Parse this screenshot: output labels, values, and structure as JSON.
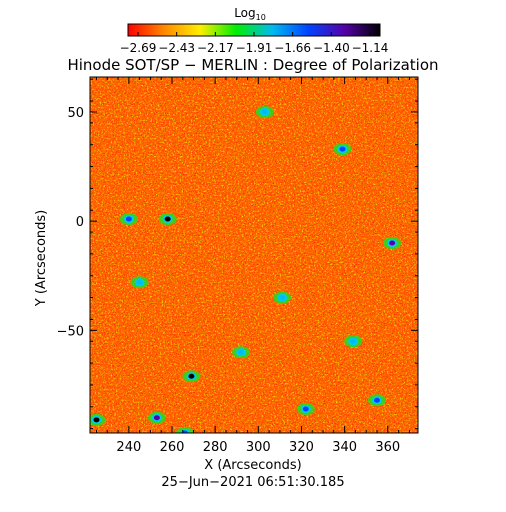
{
  "chart_data": {
    "type": "heatmap",
    "title": "Hinode SOT/SP − MERLIN : Degree of Polarization",
    "colorbar": {
      "label": "Log",
      "label_sub": "10",
      "min": -2.69,
      "max": -1.14,
      "tick_labels": [
        "−2.69",
        "−2.43",
        "−2.17",
        "−1.91",
        "−1.66",
        "−1.40",
        "−1.14"
      ],
      "colors": [
        "#ff0000",
        "#ff8800",
        "#ffee00",
        "#00ee00",
        "#00bbee",
        "#0044ff",
        "#5500aa",
        "#000000"
      ]
    },
    "xlabel": "X (Arcseconds)",
    "ylabel": "Y (Arcseconds)",
    "xlim": [
      222,
      374
    ],
    "ylim": [
      -97,
      66
    ],
    "x_ticks": [
      240,
      260,
      280,
      300,
      320,
      340,
      360
    ],
    "y_ticks": [
      50,
      0,
      -50
    ],
    "x_tick_labels": [
      "240",
      "260",
      "280",
      "300",
      "320",
      "340",
      "360"
    ],
    "y_tick_labels": [
      "50",
      "0",
      "−50"
    ],
    "background_level": -2.6,
    "features": [
      {
        "x": 225,
        "y": -91,
        "level": -1.2
      },
      {
        "x": 253,
        "y": -90,
        "level": -1.4
      },
      {
        "x": 266,
        "y": -97,
        "level": -1.5
      },
      {
        "x": 269,
        "y": -71,
        "level": -1.2
      },
      {
        "x": 258,
        "y": 1,
        "level": -1.2
      },
      {
        "x": 240,
        "y": 1,
        "level": -1.6
      },
      {
        "x": 303,
        "y": 50,
        "level": -1.7
      },
      {
        "x": 339,
        "y": 33,
        "level": -1.5
      },
      {
        "x": 362,
        "y": -10,
        "level": -1.4
      },
      {
        "x": 344,
        "y": -55,
        "level": -1.7
      },
      {
        "x": 322,
        "y": -86,
        "level": -1.5
      },
      {
        "x": 311,
        "y": -35,
        "level": -1.8
      },
      {
        "x": 292,
        "y": -60,
        "level": -1.8
      },
      {
        "x": 245,
        "y": -28,
        "level": -1.7
      },
      {
        "x": 355,
        "y": -82,
        "level": -1.6
      }
    ],
    "date": "25−Jun−2021 06:51:30.185"
  }
}
